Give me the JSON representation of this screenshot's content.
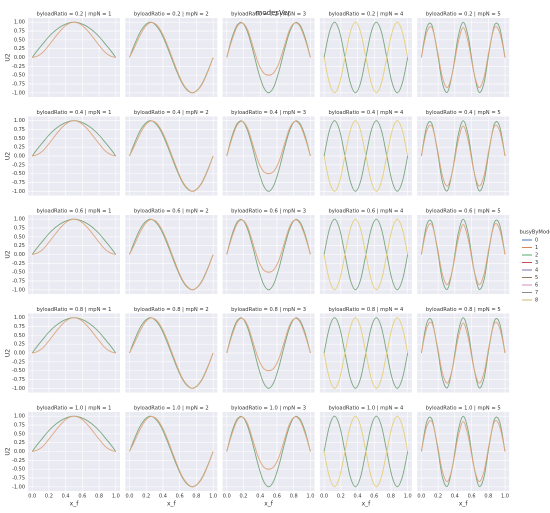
{
  "chart_data": {
    "type": "line",
    "title": "modesVer",
    "x_label": "x_f",
    "y_label": "U2",
    "xlim": [
      -0.05,
      1.05
    ],
    "ylim": [
      -1.12,
      1.12
    ],
    "xticks": [
      {
        "value": 0,
        "label": "0.0"
      },
      0.2,
      0.4,
      0.6,
      0.8,
      {
        "value": 1,
        "label": "1.0"
      }
    ],
    "yticks": [
      {
        "value": -1,
        "label": "-1.00"
      },
      {
        "value": -0.75,
        "label": "-0.75"
      },
      {
        "value": -0.5,
        "label": "-0.50"
      },
      {
        "value": -0.25,
        "label": "-0.25"
      },
      {
        "value": 0,
        "label": "0.00"
      },
      {
        "value": 0.25,
        "label": "0.25"
      },
      {
        "value": 0.5,
        "label": "0.50"
      },
      {
        "value": 0.75,
        "label": "0.75"
      },
      {
        "value": 1,
        "label": "1.00"
      }
    ],
    "grid": true,
    "panel_titles": [
      [
        "byloadRatio = 0.2 | mpN = 1",
        "byloadRatio = 0.2 | mpN = 2",
        "byloadRatio = 0.2 | mpN = 3",
        "byloadRatio = 0.2 | mpN = 4",
        "byloadRatio = 0.2 | mpN = 5"
      ],
      [
        "byloadRatio = 0.4 | mpN = 1",
        "byloadRatio = 0.4 | mpN = 2",
        "byloadRatio = 0.4 | mpN = 3",
        "byloadRatio = 0.4 | mpN = 4",
        "byloadRatio = 0.4 | mpN = 5"
      ],
      [
        "byloadRatio = 0.6 | mpN = 1",
        "byloadRatio = 0.6 | mpN = 2",
        "byloadRatio = 0.6 | mpN = 3",
        "byloadRatio = 0.6 | mpN = 4",
        "byloadRatio = 0.6 | mpN = 5"
      ],
      [
        "byloadRatio = 0.8 | mpN = 1",
        "byloadRatio = 0.8 | mpN = 2",
        "byloadRatio = 0.8 | mpN = 3",
        "byloadRatio = 0.8 | mpN = 4",
        "byloadRatio = 0.8 | mpN = 5"
      ],
      [
        "byloadRatio = 1.0 | mpN = 1",
        "byloadRatio = 1.0 | mpN = 2",
        "byloadRatio = 1.0 | mpN = 3",
        "byloadRatio = 1.0 | mpN = 4",
        "byloadRatio = 1.0 | mpN = 5"
      ]
    ],
    "x": [
      0,
      0.0625,
      0.125,
      0.1875,
      0.25,
      0.3125,
      0.375,
      0.4375,
      0.5,
      0.5625,
      0.625,
      0.6875,
      0.75,
      0.8125,
      0.875,
      0.9375,
      1
    ],
    "columns": [
      {
        "series": [
          {
            "color": "#7aa77f",
            "values": [
              0,
              0.2,
              0.38,
              0.56,
              0.71,
              0.83,
              0.92,
              0.98,
              1,
              0.98,
              0.92,
              0.83,
              0.71,
              0.56,
              0.38,
              0.2,
              0
            ]
          },
          {
            "color": "#e0a57c",
            "values": [
              0,
              0.04,
              0.14,
              0.31,
              0.5,
              0.69,
              0.85,
              0.96,
              1,
              0.96,
              0.85,
              0.69,
              0.5,
              0.31,
              0.14,
              0.04,
              0
            ]
          }
        ]
      },
      {
        "series": [
          {
            "color": "#7aa77f",
            "values": [
              0,
              0.38,
              0.71,
              0.92,
              1,
              0.92,
              0.71,
              0.38,
              0,
              -0.38,
              -0.71,
              -0.92,
              -1,
              -0.92,
              -0.71,
              -0.38,
              0
            ]
          },
          {
            "color": "#e0a57c",
            "values": [
              0,
              0.3,
              0.62,
              0.87,
              0.99,
              0.95,
              0.76,
              0.45,
              0.06,
              -0.33,
              -0.68,
              -0.9,
              -1,
              -0.93,
              -0.73,
              -0.4,
              0
            ]
          }
        ]
      },
      {
        "series": [
          {
            "color": "#7aa77f",
            "values": [
              0,
              0.56,
              0.92,
              0.98,
              0.71,
              0.2,
              -0.38,
              -0.83,
              -1,
              -0.83,
              -0.38,
              0.2,
              0.71,
              0.98,
              0.92,
              0.56,
              0
            ]
          },
          {
            "color": "#e0a57c",
            "values": [
              0,
              0.5,
              0.88,
              0.98,
              0.78,
              0.32,
              -0.15,
              -0.43,
              -0.5,
              -0.43,
              -0.15,
              0.32,
              0.78,
              0.98,
              0.88,
              0.5,
              0
            ]
          }
        ]
      },
      {
        "series": [
          {
            "color": "#7aa77f",
            "values": [
              0,
              0.71,
              1,
              0.71,
              0,
              -0.71,
              -1,
              -0.71,
              0,
              0.71,
              1,
              0.71,
              0,
              -0.71,
              -1,
              -0.71,
              0
            ]
          },
          {
            "color": "#e6cf7a",
            "values": [
              0,
              -0.71,
              -1,
              -0.71,
              0,
              0.71,
              1,
              0.71,
              0,
              -0.71,
              -1,
              -0.71,
              0,
              0.71,
              1,
              0.71,
              0
            ]
          }
        ]
      },
      {
        "series": [
          {
            "color": "#7aa77f",
            "values": [
              0,
              0.83,
              0.92,
              0.2,
              -0.71,
              -0.98,
              -0.38,
              0.56,
              1,
              0.56,
              -0.38,
              -0.98,
              -0.71,
              0.2,
              0.92,
              0.83,
              0
            ]
          },
          {
            "color": "#e0a57c",
            "values": [
              0,
              0.7,
              0.85,
              0.25,
              -0.55,
              -0.85,
              -0.4,
              0.4,
              0.85,
              0.4,
              -0.4,
              -0.85,
              -0.55,
              0.25,
              0.85,
              0.7,
              0
            ]
          }
        ]
      }
    ],
    "legend": {
      "title": "busyByMode",
      "entries": [
        {
          "name": "0",
          "color": "#4c72b0"
        },
        {
          "name": "1",
          "color": "#dd8452"
        },
        {
          "name": "2",
          "color": "#55a868"
        },
        {
          "name": "3",
          "color": "#c44e52"
        },
        {
          "name": "4",
          "color": "#8172b3"
        },
        {
          "name": "5",
          "color": "#937860"
        },
        {
          "name": "6",
          "color": "#da8bc3"
        },
        {
          "name": "7",
          "color": "#8c8c8c"
        },
        {
          "name": "8",
          "color": "#ccb974"
        }
      ]
    }
  }
}
